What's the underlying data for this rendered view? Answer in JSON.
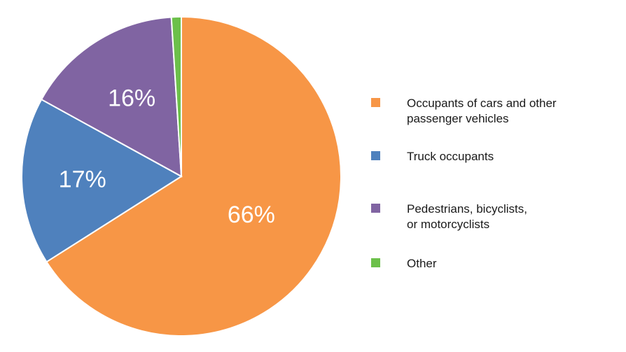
{
  "chart_data": {
    "type": "pie",
    "title": "",
    "slices": [
      {
        "label": "Occupants of cars and other\npassenger vehicles",
        "value": 66,
        "value_label": "66%",
        "color": "#F79646"
      },
      {
        "label": "Truck occupants",
        "value": 17,
        "value_label": "17%",
        "color": "#4F81BD"
      },
      {
        "label": "Pedestrians, bicyclists,\nor motorcyclists",
        "value": 16,
        "value_label": "16%",
        "color": "#8064A2"
      },
      {
        "label": "Other",
        "value": 1,
        "value_label": "",
        "color": "#6CC04A"
      }
    ],
    "legend_position": "right"
  }
}
